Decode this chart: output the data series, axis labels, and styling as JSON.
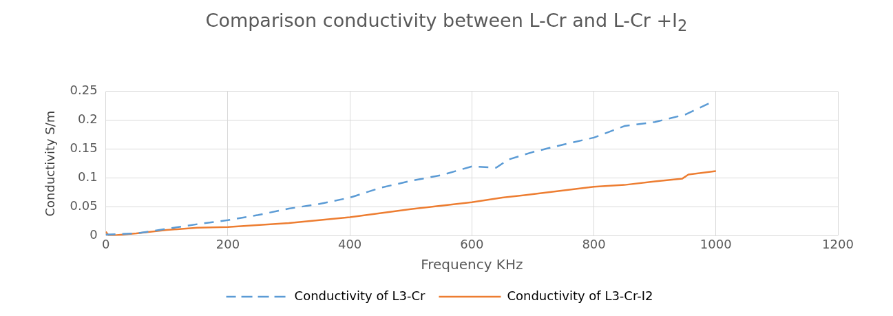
{
  "chart_data": {
    "type": "line",
    "title": "Comparison conductivity between L-Cr and L-Cr +I$_{2}$",
    "xlabel": "Frequency KHz",
    "ylabel": "Conductivity S/m",
    "xlim": [
      0,
      1200
    ],
    "xticks": [
      0,
      200,
      400,
      600,
      800,
      1000,
      1200
    ],
    "ylim": [
      0,
      0.25
    ],
    "yticks": [
      0,
      0.05,
      0.1,
      0.15,
      0.2,
      0.25
    ],
    "grid": true,
    "legend": "bottom",
    "marker": "none",
    "series": [
      {
        "name": "Conductivity of L3-Cr",
        "color": "#5b9bd5",
        "line_style": "dashed",
        "x": [
          0,
          50,
          100,
          150,
          200,
          250,
          300,
          350,
          400,
          450,
          500,
          550,
          600,
          640,
          660,
          700,
          750,
          800,
          850,
          900,
          950,
          990
        ],
        "values": [
          0.002,
          0.004,
          0.012,
          0.02,
          0.027,
          0.036,
          0.047,
          0.055,
          0.066,
          0.083,
          0.095,
          0.105,
          0.12,
          0.118,
          0.132,
          0.145,
          0.158,
          0.17,
          0.19,
          0.197,
          0.21,
          0.23
        ]
      },
      {
        "name": "Conductivity of L3-Cr-I2",
        "color": "#ed7d31",
        "line_style": "solid",
        "x": [
          0,
          5,
          50,
          100,
          150,
          200,
          300,
          400,
          500,
          600,
          650,
          700,
          800,
          850,
          900,
          945,
          955,
          1000
        ],
        "values": [
          0.007,
          0,
          0.004,
          0.01,
          0.014,
          0.015,
          0.022,
          0.032,
          0.046,
          0.058,
          0.066,
          0.072,
          0.085,
          0.088,
          0.094,
          0.099,
          0.106,
          0.112
        ]
      }
    ]
  }
}
